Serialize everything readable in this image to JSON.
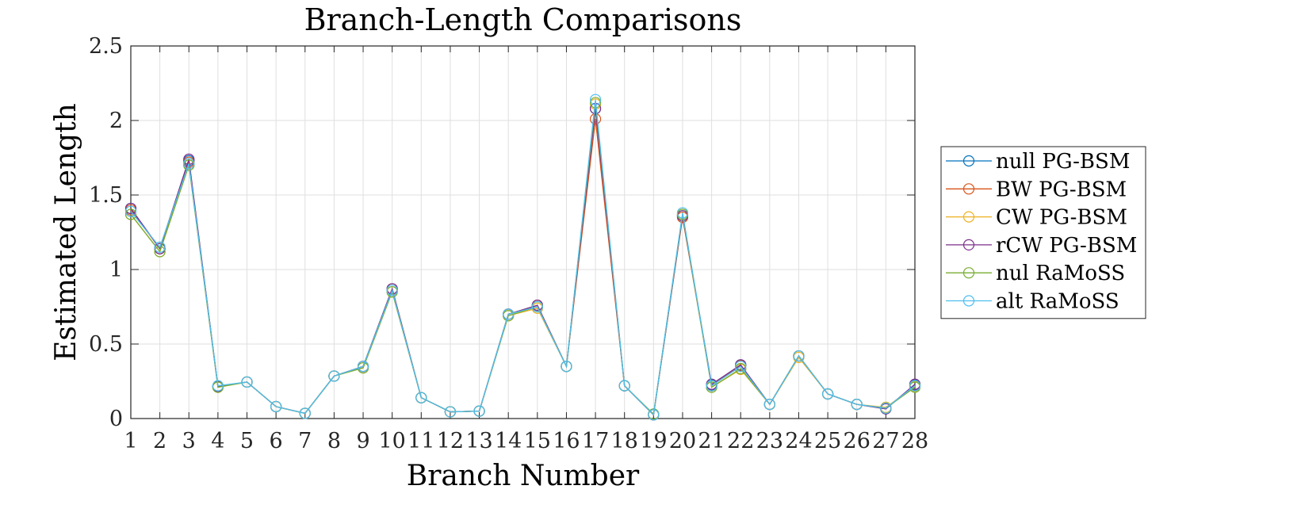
{
  "chart_data": {
    "type": "line",
    "title": "Branch-Length Comparisons",
    "xlabel": "Branch Number",
    "ylabel": "Estimated Length",
    "xlim": [
      1,
      28
    ],
    "ylim": [
      0,
      2.5
    ],
    "x": [
      1,
      2,
      3,
      4,
      5,
      6,
      7,
      8,
      9,
      10,
      11,
      12,
      13,
      14,
      15,
      16,
      17,
      18,
      19,
      20,
      21,
      22,
      23,
      24,
      25,
      26,
      27,
      28
    ],
    "xticks": [
      "1",
      "2",
      "3",
      "4",
      "5",
      "6",
      "7",
      "8",
      "9",
      "10",
      "11",
      "12",
      "13",
      "14",
      "15",
      "16",
      "17",
      "18",
      "19",
      "20",
      "21",
      "22",
      "23",
      "24",
      "25",
      "26",
      "27",
      "28"
    ],
    "yticks": [
      "0",
      "0.5",
      "1",
      "1.5",
      "2",
      "2.5"
    ],
    "grid": true,
    "marker": "circle",
    "legend_position": "right",
    "series": [
      {
        "name": "null PG-BSM",
        "color": "#0072BD",
        "values": [
          1.41,
          1.14,
          1.73,
          0.215,
          0.245,
          0.08,
          0.035,
          0.285,
          0.35,
          0.87,
          0.14,
          0.045,
          0.05,
          0.7,
          0.76,
          0.35,
          2.08,
          0.22,
          0.025,
          1.36,
          0.225,
          0.36,
          0.095,
          0.42,
          0.165,
          0.095,
          0.065,
          0.225
        ]
      },
      {
        "name": "BW PG-BSM",
        "color": "#D95319",
        "values": [
          1.4,
          1.14,
          1.72,
          0.215,
          0.245,
          0.08,
          0.035,
          0.285,
          0.35,
          0.87,
          0.14,
          0.045,
          0.05,
          0.7,
          0.76,
          0.35,
          2.01,
          0.22,
          0.025,
          1.35,
          0.22,
          0.355,
          0.095,
          0.42,
          0.165,
          0.095,
          0.07,
          0.22
        ]
      },
      {
        "name": "CW PG-BSM",
        "color": "#EDB120",
        "values": [
          1.37,
          1.12,
          1.7,
          0.21,
          0.245,
          0.08,
          0.035,
          0.285,
          0.34,
          0.85,
          0.14,
          0.045,
          0.05,
          0.69,
          0.74,
          0.35,
          2.11,
          0.22,
          0.025,
          1.37,
          0.21,
          0.33,
          0.095,
          0.41,
          0.165,
          0.095,
          0.075,
          0.215
        ]
      },
      {
        "name": "rCW PG-BSM",
        "color": "#7E2F8E",
        "values": [
          1.41,
          1.14,
          1.74,
          0.215,
          0.245,
          0.08,
          0.035,
          0.285,
          0.35,
          0.87,
          0.14,
          0.045,
          0.05,
          0.7,
          0.76,
          0.35,
          2.08,
          0.22,
          0.025,
          1.36,
          0.23,
          0.36,
          0.095,
          0.42,
          0.165,
          0.095,
          0.065,
          0.23
        ]
      },
      {
        "name": "nul RaMoSS",
        "color": "#77AC30",
        "values": [
          1.37,
          1.12,
          1.7,
          0.21,
          0.245,
          0.08,
          0.035,
          0.285,
          0.34,
          0.85,
          0.14,
          0.045,
          0.05,
          0.69,
          0.75,
          0.35,
          2.12,
          0.22,
          0.03,
          1.37,
          0.21,
          0.335,
          0.095,
          0.42,
          0.165,
          0.095,
          0.07,
          0.21
        ]
      },
      {
        "name": "alt RaMoSS",
        "color": "#4DBEEE",
        "values": [
          1.39,
          1.15,
          1.71,
          0.22,
          0.245,
          0.08,
          0.035,
          0.285,
          0.35,
          0.86,
          0.14,
          0.045,
          0.05,
          0.7,
          0.75,
          0.35,
          2.14,
          0.22,
          0.025,
          1.38,
          0.22,
          0.35,
          0.095,
          0.42,
          0.165,
          0.095,
          0.07,
          0.22
        ]
      }
    ]
  }
}
